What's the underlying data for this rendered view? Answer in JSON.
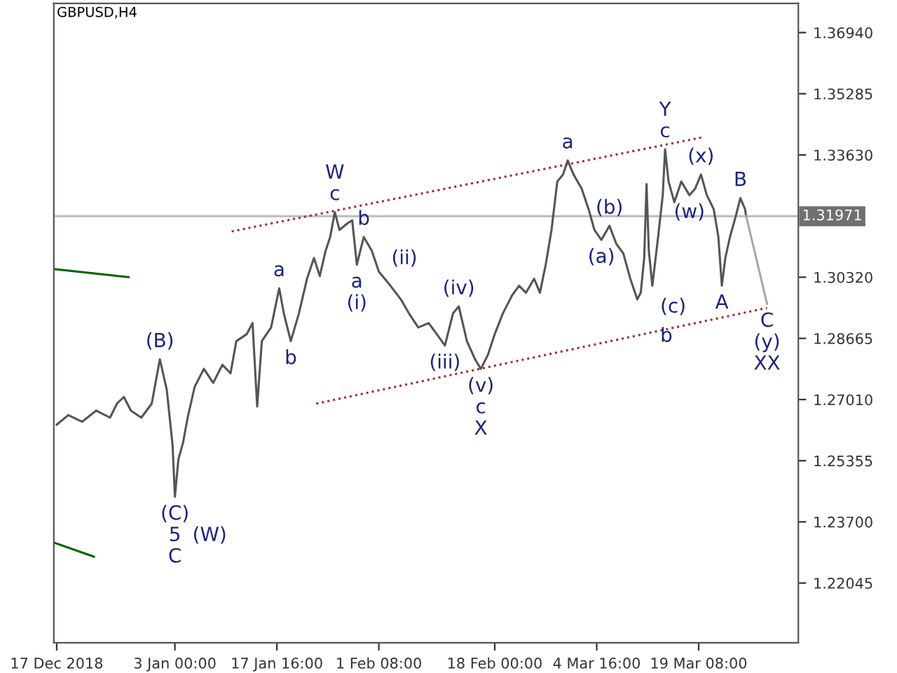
{
  "chart_data": {
    "type": "line",
    "title": "GBPUSD,H4",
    "xlim": [
      "2018-12-16T14:00",
      "2019-04-02T16:00"
    ],
    "ylim": [
      1.2043,
      1.3773
    ],
    "xticks": [
      {
        "value": "2018-12-17",
        "label": "17 Dec 2018"
      },
      {
        "value": "2019-01-03",
        "label": "3 Jan 00:00"
      },
      {
        "value": "2019-01-17T16:00",
        "label": "17 Jan 16:00"
      },
      {
        "value": "2019-02-01T08:00",
        "label": "1 Feb 08:00"
      },
      {
        "value": "2019-02-18",
        "label": "18 Feb 00:00"
      },
      {
        "value": "2019-03-04T16:00",
        "label": "4 Mar 16:00"
      },
      {
        "value": "2019-03-19T08:00",
        "label": "19 Mar 08:00"
      }
    ],
    "yticks": [
      {
        "value": 1.3694,
        "label": "1.36940"
      },
      1.35285,
      {
        "value": 1.3363,
        "label": "1.33630"
      },
      {
        "value": 1.3032,
        "label": "1.30320"
      },
      1.28665,
      {
        "value": 1.2701,
        "label": "1.27010"
      },
      1.25355,
      {
        "value": 1.237,
        "label": "1.23700"
      },
      1.22045
    ],
    "grid": false,
    "ref_lines": [
      {
        "axis": "y",
        "value": 1.31971,
        "label": "1.31971",
        "color": "#c0c0c0"
      }
    ],
    "series": [
      {
        "color": "#555555",
        "line_style": "solid",
        "x": [
          "2018-12-17T00:00",
          "2018-12-18T16:00",
          "2018-12-20T16:00",
          "2018-12-22T16:00",
          "2018-12-24T16:00",
          "2018-12-25T16:00",
          "2018-12-26T16:00",
          "2018-12-27T16:00",
          "2018-12-29T04:00",
          "2018-12-30T16:00",
          "2018-12-31T20:00",
          "2019-01-01T20:00",
          "2019-01-02T16:00",
          "2019-01-03T00:00",
          "2019-01-03T12:00",
          "2019-01-04T04:00",
          "2019-01-04T20:00",
          "2019-01-05T20:00",
          "2019-01-07T04:00",
          "2019-01-08T12:00",
          "2019-01-09T20:00",
          "2019-01-11T00:00",
          "2019-01-11T20:00",
          "2019-01-13T08:00",
          "2019-01-14T04:00",
          "2019-01-14T20:00",
          "2019-01-15T12:00",
          "2019-01-16T20:00",
          "2019-01-18T00:00",
          "2019-01-18T16:00",
          "2019-01-19T16:00",
          "2019-01-20T20:00",
          "2019-01-22T00:00",
          "2019-01-23T00:00",
          "2019-01-23T20:00",
          "2019-01-24T16:00",
          "2019-01-25T08:00",
          "2019-01-26T00:00",
          "2019-01-26T16:00",
          "2019-01-27T20:00",
          "2019-01-28T12:00",
          "2019-01-29T04:00",
          "2019-01-30T04:00",
          "2019-01-31T08:00",
          "2019-02-01T08:00",
          "2019-02-03T00:00",
          "2019-02-04T12:00",
          "2019-02-05T16:00",
          "2019-02-07T00:00",
          "2019-02-08T12:00",
          "2019-02-09T16:00",
          "2019-02-10T20:00",
          "2019-02-12T00:00",
          "2019-02-12T20:00",
          "2019-02-14T00:00",
          "2019-02-15T04:00",
          "2019-02-16T00:00",
          "2019-02-17T00:00",
          "2019-02-18T00:00",
          "2019-02-19T04:00",
          "2019-02-20T12:00",
          "2019-02-21T12:00",
          "2019-02-22T12:00",
          "2019-02-23T16:00",
          "2019-02-24T12:00",
          "2019-02-25T08:00",
          "2019-02-26T04:00",
          "2019-02-27T00:00",
          "2019-02-27T20:00",
          "2019-02-28T12:00",
          "2019-03-01T08:00",
          "2019-03-02T12:00",
          "2019-03-03T12:00",
          "2019-03-04T08:00",
          "2019-03-05T08:00",
          "2019-03-06T12:00",
          "2019-03-07T12:00",
          "2019-03-08T12:00",
          "2019-03-09T12:00",
          "2019-03-10T12:00",
          "2019-03-11T00:00",
          "2019-03-11T12:00",
          "2019-03-11T20:00",
          "2019-03-12T04:00",
          "2019-03-12T16:00",
          "2019-03-13T12:00",
          "2019-03-14T04:00",
          "2019-03-14T12:00",
          "2019-03-15T00:00",
          "2019-03-15T20:00",
          "2019-03-16T20:00",
          "2019-03-18T00:00",
          "2019-03-18T20:00",
          "2019-03-19T16:00",
          "2019-03-20T12:00",
          "2019-03-21T12:00",
          "2019-03-22T04:00",
          "2019-03-22T16:00",
          "2019-03-23T04:00",
          "2019-03-23T20:00",
          "2019-03-24T16:00",
          "2019-03-25T08:00",
          "2019-03-26T00:00",
          "2019-03-26T04:00"
        ],
        "values": [
          1.2633,
          1.2659,
          1.2641,
          1.2671,
          1.2652,
          1.269,
          1.2708,
          1.2671,
          1.2652,
          1.269,
          1.281,
          1.2727,
          1.2577,
          1.2438,
          1.2539,
          1.2584,
          1.2652,
          1.2735,
          1.2784,
          1.2746,
          1.2795,
          1.2772,
          1.2859,
          1.2878,
          1.2908,
          1.2682,
          1.2859,
          1.2896,
          1.3002,
          1.2934,
          1.2859,
          1.2934,
          1.3028,
          1.3084,
          1.3035,
          1.3103,
          1.3141,
          1.3208,
          1.316,
          1.3178,
          1.3186,
          1.3066,
          1.3141,
          1.3103,
          1.3047,
          1.3009,
          1.2972,
          1.2934,
          1.2896,
          1.2908,
          1.2878,
          1.2847,
          1.2934,
          1.2953,
          1.2859,
          1.281,
          1.2784,
          1.2821,
          1.2878,
          1.2934,
          1.2983,
          1.3009,
          1.299,
          1.3028,
          1.299,
          1.3066,
          1.316,
          1.3291,
          1.331,
          1.3348,
          1.331,
          1.3272,
          1.3216,
          1.316,
          1.3133,
          1.3171,
          1.3122,
          1.3096,
          1.3028,
          1.2972,
          1.299,
          1.3084,
          1.3284,
          1.3103,
          1.3009,
          1.3141,
          1.3254,
          1.3378,
          1.3291,
          1.3235,
          1.3291,
          1.3254,
          1.3272,
          1.331,
          1.3254,
          1.3216,
          1.3141,
          1.3009,
          1.3084,
          1.3141,
          1.3197,
          1.3246,
          1.3216,
          1.3197
        ]
      },
      {
        "color": "#a8a8a8",
        "line_style": "solid",
        "x": [
          "2019-03-26T04:00",
          "2019-03-29T04:00"
        ],
        "values": [
          1.3197,
          1.296
        ]
      },
      {
        "color": "#a52a2a",
        "line_style": "dotted",
        "x": [
          "2019-01-11T04:00",
          "2019-03-20T00:00"
        ],
        "values": [
          1.3156,
          1.3411
        ]
      },
      {
        "color": "#a52a2a",
        "line_style": "dotted",
        "x": [
          "2019-01-23T08:00",
          "2019-03-29T04:00"
        ],
        "values": [
          1.269,
          1.2949
        ]
      },
      {
        "color": "#006400",
        "line_style": "solid",
        "x": [
          "2018-12-16T14:00",
          "2018-12-27T08:00"
        ],
        "values": [
          1.3054,
          1.3032
        ]
      },
      {
        "color": "#006400",
        "line_style": "solid",
        "x": [
          "2018-12-16T14:00",
          "2018-12-22T08:00"
        ],
        "values": [
          1.2314,
          1.2276
        ]
      }
    ],
    "annotations": [
      {
        "text": "c",
        "x": "2019-01-26T00:00",
        "y": 1.3208
      },
      {
        "text": "W",
        "x": "2019-01-26T00:00",
        "y": 1.3208
      },
      {
        "text": "b",
        "x": "2019-01-30T04:00",
        "y": 1.3141
      },
      {
        "text": "(ii)",
        "x": "2019-01-31T08:00",
        "y": 1.3103
      },
      {
        "text": "a",
        "x": "2019-01-29T04:00",
        "y": 1.3066
      },
      {
        "text": "(i)",
        "x": "2019-01-29T04:00",
        "y": 1.3066
      },
      {
        "text": "a",
        "x": "2019-01-18T00:00",
        "y": 1.3002
      },
      {
        "text": "b",
        "x": "2019-01-19T16:00",
        "y": 1.2859
      },
      {
        "text": "(iv)",
        "x": "2019-02-12T20:00",
        "y": 1.2953
      },
      {
        "text": "(iii)",
        "x": "2019-02-10T20:00",
        "y": 1.2847
      },
      {
        "text": "(v)",
        "x": "2019-02-16T00:00",
        "y": 1.2784
      },
      {
        "text": "c",
        "x": "2019-02-16T00:00",
        "y": 1.2784
      },
      {
        "text": "X",
        "x": "2019-02-16T00:00",
        "y": 1.2784
      },
      {
        "text": "(B)",
        "x": "2018-12-31T20:00",
        "y": 1.281
      },
      {
        "text": "(C)",
        "x": "2019-01-03T00:00",
        "y": 1.2438
      },
      {
        "text": "5",
        "x": "2019-01-03T00:00",
        "y": 1.2438
      },
      {
        "text": "C",
        "x": "2019-01-03T00:00",
        "y": 1.2438
      },
      {
        "text": "(W)",
        "x": "2019-01-03T00:00",
        "y": 1.2438
      },
      {
        "text": "a",
        "x": "2019-02-28T12:00",
        "y": 1.3348
      },
      {
        "text": "(b)",
        "x": "2019-03-06T12:00",
        "y": 1.3171
      },
      {
        "text": "(a)",
        "x": "2019-03-05T08:00",
        "y": 1.3133
      },
      {
        "text": "(c)",
        "x": "2019-03-11T00:00",
        "y": 1.2972
      },
      {
        "text": "b",
        "x": "2019-03-11T00:00",
        "y": 1.2972
      },
      {
        "text": "c",
        "x": "2019-03-14T12:00",
        "y": 1.3378
      },
      {
        "text": "Y",
        "x": "2019-03-14T12:00",
        "y": 1.3378
      },
      {
        "text": "(w)",
        "x": "2019-03-18T00:00",
        "y": 1.3254
      },
      {
        "text": "(x)",
        "x": "2019-03-19T16:00",
        "y": 1.331
      },
      {
        "text": "A",
        "x": "2019-03-22T16:00",
        "y": 1.3009
      },
      {
        "text": "B",
        "x": "2019-03-25T08:00",
        "y": 1.3246
      },
      {
        "text": "C",
        "x": "2019-03-29T04:00",
        "y": 1.296
      },
      {
        "text": "(y)",
        "x": "2019-03-29T04:00",
        "y": 1.296
      },
      {
        "text": "XX",
        "x": "2019-03-29T04:00",
        "y": 1.296
      }
    ]
  }
}
